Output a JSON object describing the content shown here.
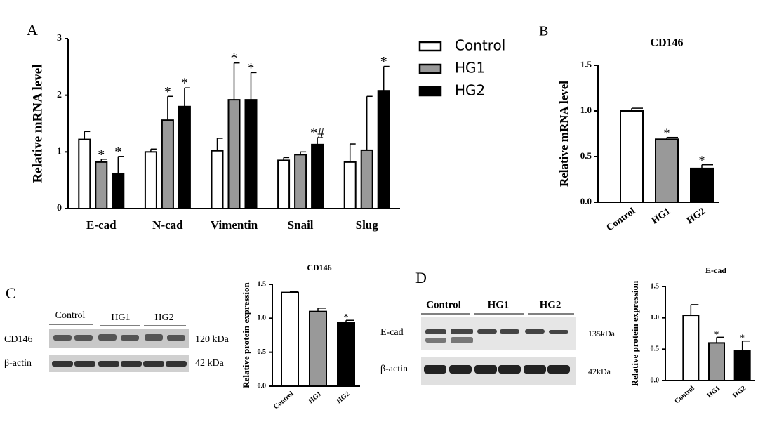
{
  "panels": [
    "A",
    "B",
    "C",
    "D"
  ],
  "blots": [
    {
      "lanes": [
        "Control",
        "HG1",
        "HG2"
      ],
      "rows": [
        {
          "label": "CD146",
          "size": "120 kDa"
        },
        {
          "label": "β-actin",
          "size": "42 kDa"
        }
      ]
    },
    {
      "lanes": [
        "Control",
        "HG1",
        "HG2"
      ],
      "rows": [
        {
          "label": "E-cad",
          "size": "135kDa"
        },
        {
          "label": "β-actin",
          "size": "42kDa"
        }
      ]
    }
  ],
  "chart_data": [
    {
      "type": "bar",
      "ylabel": "Relative mRNA level",
      "categories": [
        "E-cad",
        "N-cad",
        "Vimentin",
        "Snail",
        "Slug"
      ],
      "series": [
        {
          "name": "Control",
          "color": "#ffffff",
          "values": [
            1.22,
            1.0,
            1.02,
            0.85,
            0.82
          ],
          "errors": [
            0.14,
            0.05,
            0.22,
            0.05,
            0.32
          ],
          "markers": [
            null,
            null,
            null,
            null,
            null
          ]
        },
        {
          "name": "HG1",
          "color": "#999999",
          "values": [
            0.82,
            1.56,
            1.92,
            0.95,
            1.03
          ],
          "errors": [
            0.05,
            0.42,
            0.65,
            0.05,
            0.95
          ],
          "markers": [
            "*",
            "*",
            "*",
            null,
            null
          ]
        },
        {
          "name": "HG2",
          "color": "#000000",
          "values": [
            0.62,
            1.8,
            1.92,
            1.13,
            2.08
          ],
          "errors": [
            0.3,
            0.33,
            0.48,
            0.12,
            0.43
          ],
          "markers": [
            "*",
            "*",
            "*",
            "*#",
            "*"
          ]
        }
      ],
      "ylim": [
        0,
        3
      ],
      "yticks": [
        0,
        1,
        2,
        3
      ],
      "legend": "right"
    },
    {
      "type": "bar",
      "title": "CD146",
      "ylabel": "Relative mRNA level",
      "categories": [
        "Control",
        "HG1",
        "HG2"
      ],
      "series": [
        {
          "colors": [
            "#ffffff",
            "#999999",
            "#000000"
          ],
          "values": [
            1.0,
            0.69,
            0.37
          ],
          "errors": [
            0.03,
            0.02,
            0.04
          ],
          "markers": [
            null,
            "*",
            "*"
          ]
        }
      ],
      "ylim": [
        0,
        1.5
      ],
      "yticks": [
        {
          "value": 0,
          "label": "0.0"
        },
        0.5,
        {
          "value": 1,
          "label": "1.0"
        },
        1.5
      ]
    },
    {
      "type": "bar",
      "title": "CD146",
      "ylabel": "Relative protein expression",
      "categories": [
        "Control",
        "HG1",
        "HG2"
      ],
      "series": [
        {
          "colors": [
            "#ffffff",
            "#999999",
            "#000000"
          ],
          "values": [
            1.38,
            1.1,
            0.94
          ],
          "errors": [
            0.01,
            0.05,
            0.03
          ],
          "markers": [
            null,
            null,
            "*"
          ]
        }
      ],
      "ylim": [
        0,
        1.5
      ],
      "yticks": [
        {
          "value": 0,
          "label": "0.0"
        },
        0.5,
        {
          "value": 1,
          "label": "1.0"
        },
        1.5
      ]
    },
    {
      "type": "bar",
      "title": "E-cad",
      "ylabel": "Relative protein expression",
      "categories": [
        "Control",
        "HG1",
        "HG2"
      ],
      "series": [
        {
          "colors": [
            "#ffffff",
            "#999999",
            "#000000"
          ],
          "values": [
            1.04,
            0.6,
            0.47
          ],
          "errors": [
            0.17,
            0.09,
            0.16
          ],
          "markers": [
            null,
            "*",
            "*"
          ]
        }
      ],
      "ylim": [
        0,
        1.5
      ],
      "yticks": [
        {
          "value": 0,
          "label": "0.0"
        },
        0.5,
        {
          "value": 1,
          "label": "1.0"
        },
        1.5
      ]
    }
  ]
}
